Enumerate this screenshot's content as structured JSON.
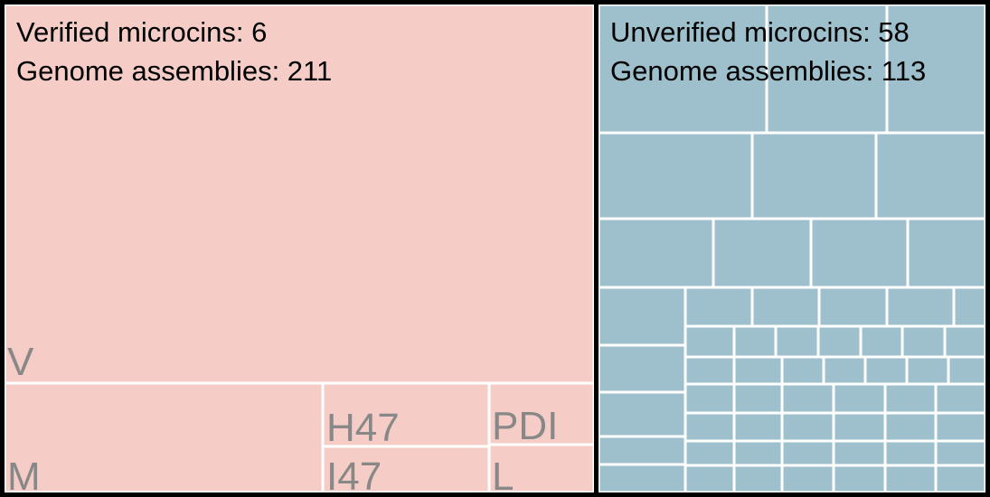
{
  "chart_data": [
    {
      "type": "treemap",
      "group": "Verified",
      "stats": {
        "microcins_label": "Verified microcins: 6",
        "assemblies_label": "Genome assemblies: 211"
      },
      "fill": "#f5cdc6",
      "tiles": [
        {
          "name": "V",
          "label": "V"
        },
        {
          "name": "M",
          "label": "M"
        },
        {
          "name": "H47",
          "label": "H47"
        },
        {
          "name": "I47",
          "label": "I47"
        },
        {
          "name": "PDI",
          "label": "PDI"
        },
        {
          "name": "L",
          "label": "L"
        }
      ]
    },
    {
      "type": "treemap",
      "group": "Unverified",
      "stats": {
        "microcins_label": "Unverified microcins: 58",
        "assemblies_label": "Genome assemblies: 113"
      },
      "fill": "#9dc0cc",
      "tile_count": 58
    }
  ],
  "colors": {
    "background": "#000000",
    "divider": "#ffffff",
    "label": "#888888"
  }
}
